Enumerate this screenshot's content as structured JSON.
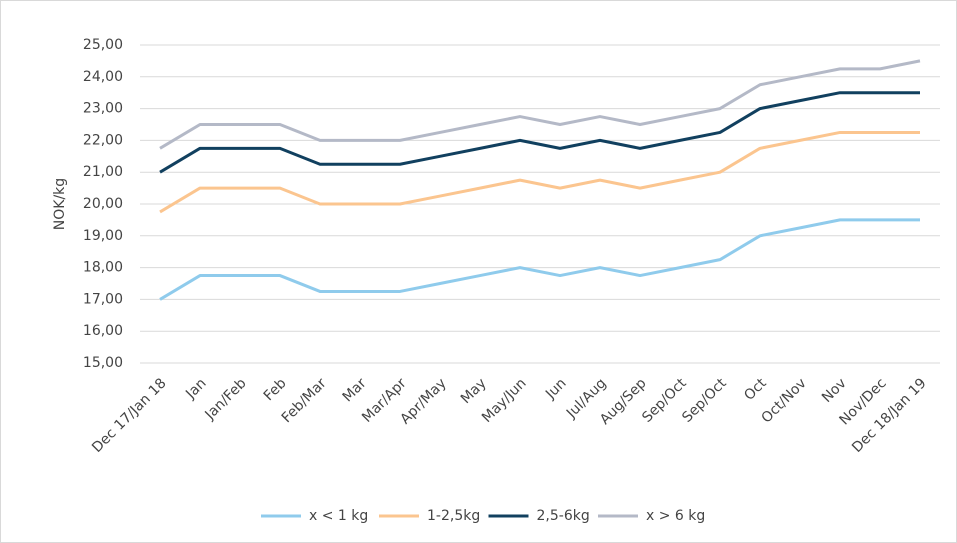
{
  "chart_data": {
    "type": "line",
    "y_label": "NOK/kg",
    "categories": [
      "Dec 17/Jan 18",
      "Jan",
      "Jan/Feb",
      "Feb",
      "Feb/Mar",
      "Mar",
      "Mar/Apr",
      "Apr/May",
      "May",
      "May/Jun",
      "Jun",
      "Jul/Aug",
      "Aug/Sep",
      "Sep/Oct",
      "Sep/Oct",
      "Oct",
      "Oct/Nov",
      "Nov",
      "Nov/Dec",
      "Dec 18/Jan 19"
    ],
    "series": [
      {
        "name": "x < 1 kg",
        "color": "#8fcbec",
        "values": [
          17.0,
          17.75,
          17.75,
          17.75,
          17.25,
          17.25,
          17.25,
          17.5,
          17.75,
          18.0,
          17.75,
          18.0,
          17.75,
          18.0,
          18.25,
          19.0,
          19.25,
          19.5,
          19.5,
          19.5
        ]
      },
      {
        "name": "1-2,5kg",
        "color": "#fbc58f",
        "values": [
          19.75,
          20.5,
          20.5,
          20.5,
          20.0,
          20.0,
          20.0,
          20.25,
          20.5,
          20.75,
          20.5,
          20.75,
          20.5,
          20.75,
          21.0,
          21.75,
          22.0,
          22.25,
          22.25,
          22.25
        ]
      },
      {
        "name": "2,5-6kg",
        "color": "#11405f",
        "values": [
          21.0,
          21.75,
          21.75,
          21.75,
          21.25,
          21.25,
          21.25,
          21.5,
          21.75,
          22.0,
          21.75,
          22.0,
          21.75,
          22.0,
          22.25,
          23.0,
          23.25,
          23.5,
          23.5,
          23.5
        ]
      },
      {
        "name": "x > 6 kg",
        "color": "#b4b9c7",
        "values": [
          21.75,
          22.5,
          22.5,
          22.5,
          22.0,
          22.0,
          22.0,
          22.25,
          22.5,
          22.75,
          22.5,
          22.75,
          22.5,
          22.75,
          23.0,
          23.75,
          24.0,
          24.25,
          24.25,
          24.5
        ]
      }
    ],
    "ylim": [
      15,
      25
    ],
    "yticks": [
      {
        "value": 15,
        "label": "15,00"
      },
      {
        "value": 16,
        "label": "16,00"
      },
      {
        "value": 17,
        "label": "17,00"
      },
      {
        "value": 18,
        "label": "18,00"
      },
      {
        "value": 19,
        "label": "19,00"
      },
      {
        "value": 20,
        "label": "20,00"
      },
      {
        "value": 21,
        "label": "21,00"
      },
      {
        "value": 22,
        "label": "22,00"
      },
      {
        "value": 23,
        "label": "23,00"
      },
      {
        "value": 24,
        "label": "24,00"
      },
      {
        "value": 25,
        "label": "25,00"
      }
    ],
    "grid": true,
    "legend": "bottom"
  }
}
